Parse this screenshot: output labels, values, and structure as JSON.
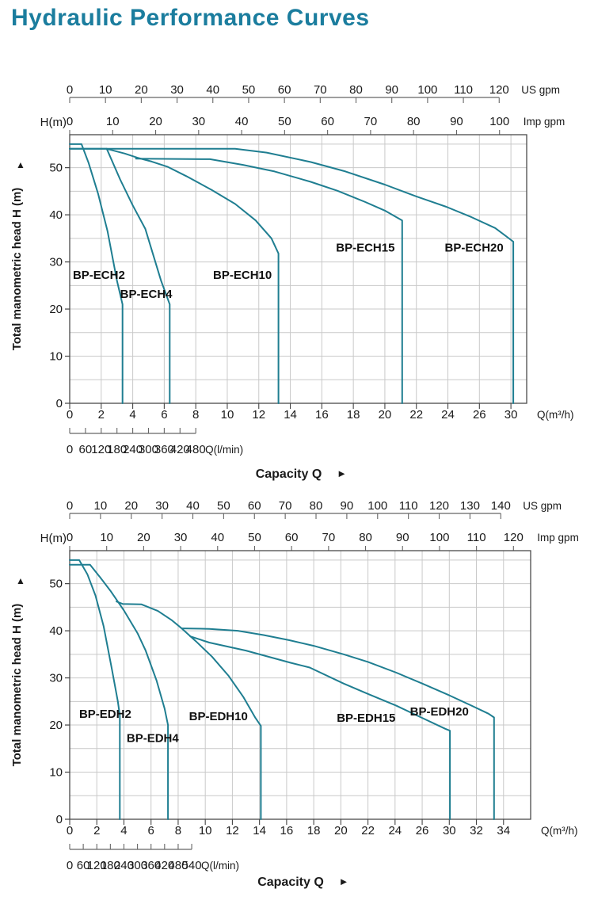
{
  "page": {
    "title": "Hydraulic Performance Curves",
    "title_color": "#1b7d9e",
    "curve_color": "#1f7e91",
    "frame_color": "#4a4a4a",
    "grid_color": "#c9c9c9",
    "text_color": "#1a1a1a"
  },
  "chart_data": [
    {
      "type": "line",
      "name": "BP-ECH series performance curves",
      "us_ruler": {
        "unit": "US gpm",
        "ticks": [
          0,
          10,
          20,
          30,
          40,
          50,
          60,
          70,
          80,
          90,
          100,
          110,
          120
        ],
        "max": 120
      },
      "imp_ruler": {
        "unit": "Imp gpm",
        "ticks": [
          0,
          10,
          20,
          30,
          40,
          50,
          60,
          70,
          80,
          90,
          100
        ],
        "max": 100
      },
      "lmin_ruler": {
        "unit": "Q(l/min)",
        "ticks": [
          0,
          60,
          120,
          180,
          240,
          300,
          360,
          420,
          480
        ],
        "max": 480
      },
      "x_axis": {
        "unit": "Q(m³/h)",
        "tick_labels": [
          "0",
          "2",
          "4",
          "6",
          "8",
          "10",
          "12",
          "14",
          "16",
          "18",
          "20",
          "22",
          "24",
          "26",
          "30"
        ],
        "tick_step": 2
      },
      "y_axis": {
        "label": "H(m)",
        "rotated_label": "Total manometric head H (m)",
        "arrow_up": "▲",
        "ticks": [
          0,
          10,
          20,
          30,
          40,
          50
        ],
        "max": 57,
        "grid_step": 5
      },
      "capacity": {
        "label": "Capacity Q",
        "arrow": "►"
      },
      "series": [
        {
          "name": "BP-ECH2",
          "label_pos": [
            0.2,
            27.2
          ],
          "points": [
            [
              0,
              55
            ],
            [
              0.75,
              55
            ],
            [
              1.2,
              51
            ],
            [
              1.8,
              44.5
            ],
            [
              2.4,
              36.5
            ],
            [
              3,
              26
            ],
            [
              3.35,
              21
            ],
            [
              3.35,
              0
            ]
          ]
        },
        {
          "name": "BP-ECH4",
          "label_pos": [
            3.2,
            23.2
          ],
          "points": [
            [
              0,
              54
            ],
            [
              2.35,
              54
            ],
            [
              3.2,
              47.5
            ],
            [
              4,
              42
            ],
            [
              4.8,
              37
            ],
            [
              5.8,
              26
            ],
            [
              6.35,
              21
            ],
            [
              6.35,
              0
            ]
          ]
        },
        {
          "name": "BP-ECH10",
          "label_pos": [
            9.1,
            27.2
          ],
          "points": [
            [
              2.35,
              54
            ],
            [
              3.5,
              53
            ],
            [
              4.3,
              52.1
            ],
            [
              5.2,
              51.3
            ],
            [
              6.2,
              50.2
            ],
            [
              7.4,
              48.2
            ],
            [
              9,
              45.3
            ],
            [
              10.5,
              42.3
            ],
            [
              11.8,
              38.8
            ],
            [
              12.8,
              35
            ],
            [
              13.25,
              31.8
            ],
            [
              13.25,
              0
            ]
          ]
        },
        {
          "name": "BP-ECH15",
          "label_pos": [
            16.9,
            33.0
          ],
          "points": [
            [
              4.2,
              51.9
            ],
            [
              8.9,
              51.8
            ],
            [
              11,
              50.6
            ],
            [
              13,
              49.2
            ],
            [
              15.3,
              47
            ],
            [
              17,
              45.1
            ],
            [
              18.7,
              42.8
            ],
            [
              20,
              40.9
            ],
            [
              21.1,
              38.8
            ],
            [
              21.1,
              0
            ]
          ]
        },
        {
          "name": "BP-ECH20",
          "label_pos": [
            23.8,
            33.0
          ],
          "points": [
            [
              0,
              54
            ],
            [
              10.5,
              54
            ],
            [
              12.5,
              53.2
            ],
            [
              15.3,
              51.2
            ],
            [
              17.5,
              49.2
            ],
            [
              20,
              46.4
            ],
            [
              22,
              43.9
            ],
            [
              23.9,
              41.7
            ],
            [
              25.5,
              39.5
            ],
            [
              27,
              37.2
            ],
            [
              28.15,
              34.3
            ],
            [
              28.15,
              0
            ]
          ]
        }
      ]
    },
    {
      "type": "line",
      "name": "BP-EDH series performance curves",
      "us_ruler": {
        "unit": "US gpm",
        "ticks": [
          0,
          10,
          20,
          30,
          40,
          50,
          60,
          70,
          80,
          90,
          100,
          110,
          120,
          130,
          140
        ],
        "max": 140
      },
      "imp_ruler": {
        "unit": "Imp gpm",
        "ticks": [
          0,
          10,
          20,
          30,
          40,
          50,
          60,
          70,
          80,
          90,
          100,
          110,
          120
        ],
        "max": 120
      },
      "lmin_ruler": {
        "unit": "Q(l/min)",
        "ticks": [
          0,
          60,
          120,
          180,
          240,
          300,
          360,
          420,
          480,
          540
        ],
        "max": 540
      },
      "x_axis": {
        "unit": "Q(m³/h)",
        "tick_labels": [
          "0",
          "2",
          "4",
          "6",
          "8",
          "10",
          "12",
          "14",
          "16",
          "18",
          "20",
          "22",
          "24",
          "26",
          "30",
          "32",
          "34"
        ],
        "tick_step": 2
      },
      "y_axis": {
        "label": "H(m)",
        "rotated_label": "Total manometric head H (m)",
        "arrow_up": "▲",
        "ticks": [
          0,
          10,
          20,
          30,
          40,
          50
        ],
        "max": 57,
        "grid_step": 5
      },
      "capacity": {
        "label": "Capacity Q",
        "arrow": "►"
      },
      "series": [
        {
          "name": "BP-EDH2",
          "label_pos": [
            0.7,
            22.4
          ],
          "points": [
            [
              0,
              55
            ],
            [
              0.7,
              55
            ],
            [
              1.3,
              52
            ],
            [
              1.9,
              47.5
            ],
            [
              2.5,
              41
            ],
            [
              3.1,
              32
            ],
            [
              3.55,
              25
            ],
            [
              3.7,
              22
            ],
            [
              3.7,
              0
            ]
          ]
        },
        {
          "name": "BP-EDH4",
          "label_pos": [
            4.2,
            17.2
          ],
          "points": [
            [
              0,
              54
            ],
            [
              1.5,
              54
            ],
            [
              2.2,
              51.5
            ],
            [
              3,
              48.5
            ],
            [
              4,
              44.3
            ],
            [
              5,
              39.5
            ],
            [
              5.6,
              35.8
            ],
            [
              6.4,
              29.5
            ],
            [
              7,
              23.5
            ],
            [
              7.25,
              20
            ],
            [
              7.25,
              0
            ]
          ]
        },
        {
          "name": "BP-EDH10",
          "label_pos": [
            8.8,
            21.9
          ],
          "points": [
            [
              3.45,
              46.2
            ],
            [
              3.9,
              45.7
            ],
            [
              5.3,
              45.6
            ],
            [
              6.5,
              44.2
            ],
            [
              7.5,
              42.3
            ],
            [
              8.3,
              40.4
            ],
            [
              9.3,
              37.8
            ],
            [
              10.5,
              34.5
            ],
            [
              11.7,
              30.5
            ],
            [
              12.8,
              26
            ],
            [
              13.7,
              21.5
            ],
            [
              14.1,
              19.8
            ],
            [
              14.1,
              0
            ]
          ]
        },
        {
          "name": "BP-EDH15",
          "label_pos": [
            19.7,
            21.5
          ],
          "points": [
            [
              8.9,
              38.8
            ],
            [
              10.3,
              37.5
            ],
            [
              13,
              35.8
            ],
            [
              16.3,
              33.2
            ],
            [
              17.7,
              32.2
            ],
            [
              20.2,
              28.8
            ],
            [
              22,
              26.6
            ],
            [
              24.1,
              24.1
            ],
            [
              26,
              21.5
            ],
            [
              27.7,
              19.2
            ],
            [
              28.05,
              18.8
            ],
            [
              28.05,
              0
            ]
          ]
        },
        {
          "name": "BP-EDH20",
          "label_pos": [
            25.1,
            22.9
          ],
          "points": [
            [
              8.3,
              40.5
            ],
            [
              10.3,
              40.4
            ],
            [
              12.4,
              40
            ],
            [
              14.3,
              39.1
            ],
            [
              16.2,
              38
            ],
            [
              18,
              36.8
            ],
            [
              20.2,
              35
            ],
            [
              22,
              33.4
            ],
            [
              24.1,
              31.1
            ],
            [
              26,
              28.8
            ],
            [
              28,
              26.3
            ],
            [
              29.5,
              24.3
            ],
            [
              30.9,
              22.4
            ],
            [
              31.3,
              21.6
            ],
            [
              31.3,
              0
            ]
          ]
        }
      ]
    }
  ]
}
